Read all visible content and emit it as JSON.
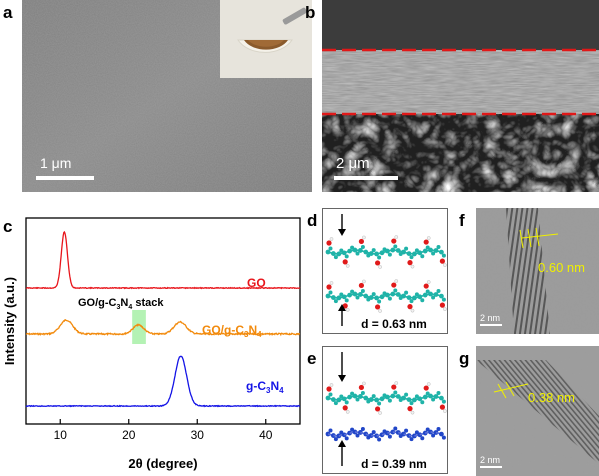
{
  "panels": {
    "a": {
      "letter": "a",
      "scale_label": "1 μm"
    },
    "b": {
      "letter": "b",
      "scale_label": "2 μm"
    },
    "c": {
      "letter": "c"
    },
    "d": {
      "letter": "d",
      "spacing_label": "d = 0.63 nm"
    },
    "e": {
      "letter": "e",
      "spacing_label": "d = 0.39 nm"
    },
    "f": {
      "letter": "f",
      "fringe_label": "0.60 nm",
      "scale_label": "2 nm"
    },
    "g": {
      "letter": "g",
      "fringe_label": "0.38 nm",
      "scale_label": "2 nm"
    }
  },
  "colors": {
    "go": "#e8151b",
    "go_gcn": "#f28a0c",
    "gcn": "#1414e6",
    "highlight": "#a7f0a7",
    "dashed_boundary": "#e01818",
    "fringe_annotation": "#f0f000"
  },
  "chart_data": {
    "type": "line",
    "xlabel": "2θ (degree)",
    "ylabel": "Intensity (a.u.)",
    "xlim": [
      5,
      45
    ],
    "xticks": [
      10,
      20,
      30,
      40
    ],
    "annotation": "GO/g-C3N4 stack",
    "highlight_range": [
      20.5,
      22.5
    ],
    "series": [
      {
        "name": "GO",
        "peaks": [
          10.6
        ],
        "baseline_offset": 2.0
      },
      {
        "name": "GO/g-C3N4",
        "peaks": [
          10.9,
          21.4,
          27.5
        ],
        "baseline_offset": 1.0
      },
      {
        "name": "g-C3N4",
        "peaks": [
          27.6
        ],
        "baseline_offset": 0.0
      }
    ]
  }
}
